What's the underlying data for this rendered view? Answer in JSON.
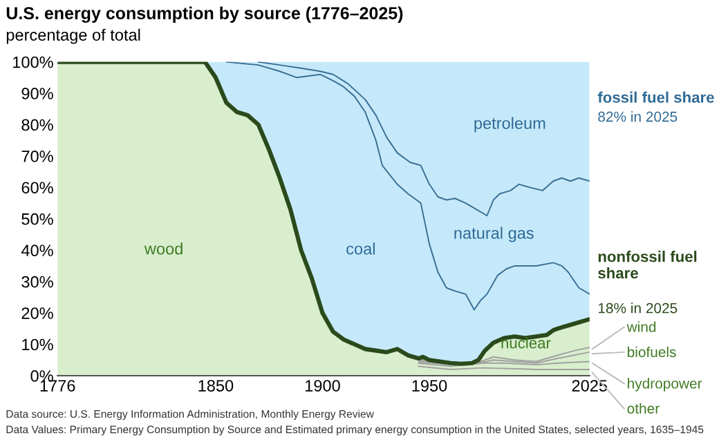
{
  "chart_data": {
    "type": "area",
    "title": "U.S. energy consumption by source (1776–2025)",
    "subtitle": "percentage of total",
    "xlim": [
      1776,
      2025
    ],
    "ylim": [
      0,
      100
    ],
    "xticks": [
      1776,
      1850,
      1900,
      1950,
      2025
    ],
    "yticks": [
      {
        "value": 0,
        "label": "0%"
      },
      {
        "value": 10,
        "label": "10%"
      },
      {
        "value": 20,
        "label": "20%"
      },
      {
        "value": 30,
        "label": "30%"
      },
      {
        "value": 40,
        "label": "40%"
      },
      {
        "value": 50,
        "label": "50%"
      },
      {
        "value": 60,
        "label": "60%"
      },
      {
        "value": 70,
        "label": "70%"
      },
      {
        "value": 80,
        "label": "80%"
      },
      {
        "value": 90,
        "label": "90%"
      },
      {
        "value": 100,
        "label": "100%"
      }
    ],
    "grid": false,
    "legend": false,
    "stacked": true,
    "series": [
      {
        "color": "#2b4a1c",
        "x": [
          1776,
          1845,
          1850,
          1855,
          1860,
          1865,
          1870,
          1875,
          1880,
          1885,
          1890,
          1895,
          1900,
          1905,
          1910,
          1915,
          1920,
          1925,
          1930,
          1935,
          1940,
          1945,
          1947,
          1950,
          1955,
          1960,
          1965,
          1970,
          1973,
          1976,
          1980,
          1985,
          1990,
          1995,
          2000,
          2005,
          2008,
          2010,
          2015,
          2020,
          2025
        ],
        "values": [
          100,
          100,
          95,
          87,
          84,
          83,
          80,
          72,
          63,
          53,
          40,
          31,
          20,
          14,
          11.5,
          10,
          8.5,
          8,
          7.5,
          8.5,
          6.5,
          5.5,
          6,
          5,
          4.5,
          4,
          3.8,
          4,
          5,
          8,
          10.5,
          12,
          12.5,
          12,
          12.5,
          13,
          14.5,
          15,
          16,
          17,
          18
        ]
      },
      {
        "color": "#c5e9fa",
        "x": [
          1776,
          1845,
          1850,
          1855,
          1860,
          1865,
          1870,
          1875,
          1880,
          1885,
          1890,
          1895,
          1900,
          1905,
          1910,
          1915,
          1920,
          1925,
          1930,
          1935,
          1940,
          1945,
          1947,
          1950,
          1955,
          1960,
          1965,
          1970,
          1973,
          1976,
          1980,
          1985,
          1990,
          1995,
          2000,
          2005,
          2008,
          2010,
          2015,
          2020,
          2025
        ],
        "values": [
          0,
          0,
          5,
          13,
          16,
          17,
          20,
          28,
          37,
          47,
          60,
          69,
          80,
          86,
          88.5,
          90,
          91.5,
          92,
          92.5,
          91.5,
          93.5,
          94.5,
          94,
          95,
          95.5,
          96,
          96.2,
          96,
          95,
          92,
          89.5,
          88,
          87.5,
          88,
          87.5,
          87,
          85.5,
          85,
          84,
          83,
          82
        ]
      },
      {
        "type": "line",
        "color": "#3a6f94",
        "x": [
          1855,
          1870,
          1880,
          1888,
          1899,
          1905,
          1910,
          1915,
          1920,
          1925,
          1928,
          1935,
          1940,
          1946,
          1950,
          1954,
          1958,
          1962,
          1967,
          1971,
          1974,
          1977,
          1982,
          1986,
          1990,
          2000,
          2008,
          2012,
          2015,
          2018,
          2020,
          2025
        ],
        "values": [
          100,
          99,
          97,
          95,
          96,
          94,
          92,
          89,
          84,
          75,
          67,
          61,
          58,
          55,
          42,
          33,
          28,
          27,
          26,
          21,
          24,
          26,
          32,
          34,
          35,
          35,
          36,
          35,
          33,
          30,
          28,
          26
        ]
      },
      {
        "type": "line",
        "color": "#3a6f94",
        "x": [
          1870,
          1880,
          1890,
          1899,
          1905,
          1912,
          1920,
          1925,
          1930,
          1935,
          1941,
          1946,
          1950,
          1954,
          1958,
          1962,
          1967,
          1972,
          1977,
          1980,
          1983,
          1988,
          1992,
          1997,
          2003,
          2008,
          2012,
          2016,
          2020,
          2025
        ],
        "values": [
          100,
          99,
          98,
          97,
          96,
          93,
          88,
          83,
          76,
          71,
          68,
          67,
          61,
          57,
          56,
          56.5,
          55,
          53,
          51,
          56,
          58,
          59,
          61,
          60,
          59,
          62,
          63,
          62,
          63,
          62
        ]
      },
      {
        "type": "line",
        "color": "#a0a0a0",
        "x": [
          1945,
          1955,
          1965,
          1972,
          1980,
          1990,
          2000,
          2010,
          2018,
          2025
        ],
        "values": [
          5,
          4,
          3.8,
          4,
          6,
          5,
          4.5,
          6.5,
          8,
          9
        ]
      },
      {
        "type": "line",
        "color": "#a0a0a0",
        "x": [
          1945,
          1960,
          1972,
          1980,
          1990,
          2000,
          2010,
          2025
        ],
        "values": [
          4.5,
          3.5,
          3.8,
          5,
          4.5,
          4,
          5.5,
          7.5
        ]
      },
      {
        "type": "line",
        "color": "#a0a0a0",
        "x": [
          1945,
          1960,
          1975,
          1985,
          2000,
          2010,
          2025
        ],
        "values": [
          4,
          3,
          4,
          4,
          3.5,
          4,
          4.5
        ]
      },
      {
        "type": "line",
        "color": "#a0a0a0",
        "x": [
          1945,
          1960,
          1975,
          2000,
          2025
        ],
        "values": [
          3,
          2,
          2.5,
          2,
          2
        ]
      }
    ],
    "annotations": [
      "wood",
      "coal",
      "petroleum",
      "natural gas",
      "nuclear",
      "fossil fuel share",
      "82% in 2025",
      "nonfossil fuel\nshare",
      "18% in 2025",
      "wind",
      "biofuels",
      "hydropower",
      "other",
      "Data source: U.S. Energy Information Administration, Monthly Energy Review",
      "Data Values: Primary Energy Consumption by Source and Estimated primary energy consumption in the United States, selected years, 1635–1945"
    ]
  }
}
